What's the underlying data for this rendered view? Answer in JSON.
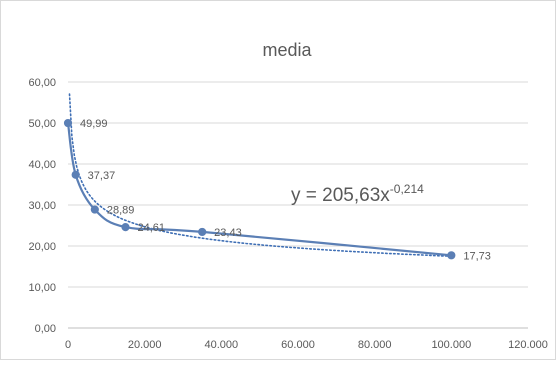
{
  "chart_data": {
    "type": "scatter",
    "title": "media",
    "xlabel": "",
    "ylabel": "",
    "xlim": [
      0,
      120000
    ],
    "ylim": [
      0,
      60
    ],
    "x_ticks": [
      "0",
      "20.000",
      "40.000",
      "60.000",
      "80.000",
      "100.000",
      "120.000"
    ],
    "y_ticks": [
      "0,00",
      "10,00",
      "20,00",
      "30,00",
      "40,00",
      "50,00",
      "60,00"
    ],
    "grid": true,
    "series": [
      {
        "x": [
          1,
          2000,
          7000,
          15000,
          35000,
          100000
        ],
        "y": [
          49.99,
          37.37,
          28.89,
          24.61,
          23.43,
          17.73
        ],
        "data_labels": [
          "49,99",
          "37,37",
          "28,89",
          "24,61",
          "23,43",
          "17,73"
        ],
        "color": "#5b7fb5",
        "line": "smooth"
      }
    ],
    "trendline": {
      "kind": "power",
      "a": 205.63,
      "b": -0.214,
      "equation_base": "y = 205,63x",
      "equation_exponent": "-0,214",
      "color": "#3f6fb5",
      "style": "dotted"
    }
  },
  "colors": {
    "axis_text": "#595959",
    "gridline": "#d9d9d9",
    "border": "#d9d9d9"
  }
}
